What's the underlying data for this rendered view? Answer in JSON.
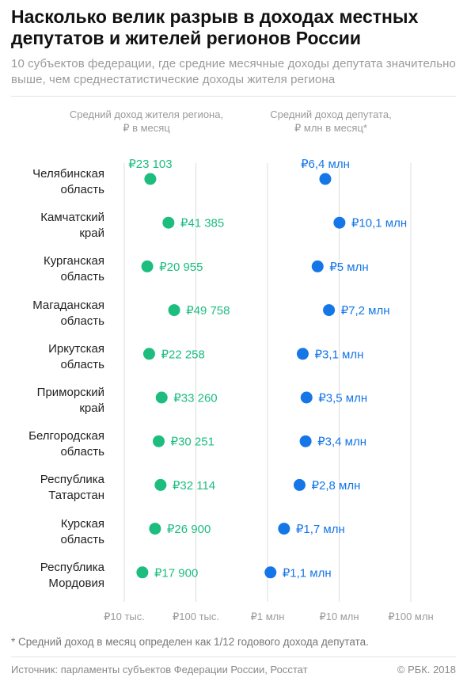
{
  "title": "Насколько велик разрыв в доходах местных депутатов и жителей регионов России",
  "subtitle": "10 субъектов федерации, где средние месячные доходы депутата значительно выше, чем среднестатистические доходы жителя региона",
  "colors": {
    "residents": "#1dbd80",
    "deputies": "#1576e8",
    "grid": "#dddddd",
    "text_muted": "#9a9a9a"
  },
  "chart_data": {
    "type": "scatter",
    "scale": "log",
    "categories": [
      "Челябинская\nобласть",
      "Камчатский\nкрай",
      "Курганская\nобласть",
      "Магаданская\nобласть",
      "Иркутская\nобласть",
      "Приморский\nкрай",
      "Белгородская\nобласть",
      "Республика\nТатарстан",
      "Курская\nобласть",
      "Республика\nМордовия"
    ],
    "series": [
      {
        "name": "Средний доход жителя региона,\n₽ в месяц",
        "values": [
          23103,
          41385,
          20955,
          49758,
          22258,
          33260,
          30251,
          32114,
          26900,
          17900
        ],
        "labels": [
          "₽23 103",
          "₽41 385",
          "₽20 955",
          "₽49 758",
          "₽22 258",
          "₽33 260",
          "₽30 251",
          "₽32 114",
          "₽26 900",
          "₽17 900"
        ]
      },
      {
        "name": "Средний доход депутата,\n₽ млн в месяц*",
        "values": [
          6400000,
          10100000,
          5000000,
          7200000,
          3100000,
          3500000,
          3400000,
          2800000,
          1700000,
          1100000
        ],
        "labels": [
          "₽6,4 млн",
          "₽10,1 млн",
          "₽5 млн",
          "₽7,2 млн",
          "₽3,1 млн",
          "₽3,5 млн",
          "₽3,4 млн",
          "₽2,8 млн",
          "₽1,7 млн",
          "₽1,1 млн"
        ]
      }
    ],
    "ticks": [
      {
        "value": 10000,
        "label": "₽10 тыс."
      },
      {
        "value": 100000,
        "label": "₽100 тыс."
      },
      {
        "value": 1000000,
        "label": "₽1 млн"
      },
      {
        "value": 10000000,
        "label": "₽10 млн"
      },
      {
        "value": 100000000,
        "label": "₽100 млн"
      }
    ],
    "grid": true
  },
  "footnote": "* Средний доход в месяц определен как 1/12 годового дохода депутата.",
  "source": "Источник: парламенты субъектов Федерации России, Росстат",
  "copyright": "© РБК. 2018"
}
